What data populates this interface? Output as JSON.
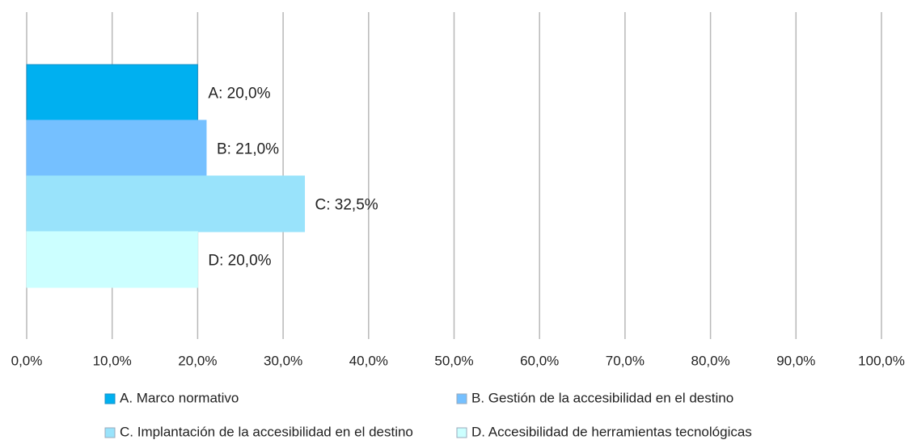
{
  "chart_data": {
    "type": "bar",
    "orientation": "horizontal",
    "series": [
      {
        "name": "A. Marco normativo",
        "color": "#00b0f0",
        "values": [
          20.0
        ],
        "value_labels": [
          "A: 20,0%"
        ]
      },
      {
        "name": "B. Gestión de la accesibilidad en el destino",
        "color": "#75c0ff",
        "values": [
          21.0
        ],
        "value_labels": [
          "B: 21,0%"
        ]
      },
      {
        "name": "C. Implantación de la accesibilidad en el destino",
        "color": "#99e3fb",
        "values": [
          32.5
        ],
        "value_labels": [
          "C: 32,5%"
        ]
      },
      {
        "name": "D. Accesibilidad de herramientas tecnológicas",
        "color": "#ccffff",
        "values": [
          20.0
        ],
        "value_labels": [
          "D: 20,0%"
        ]
      }
    ],
    "xlim": [
      0,
      100
    ],
    "xticks": [
      {
        "value": 0,
        "label": "0,0%"
      },
      {
        "value": 10,
        "label": "10,0%"
      },
      {
        "value": 20,
        "label": "20,0%"
      },
      {
        "value": 30,
        "label": "30,0%"
      },
      {
        "value": 40,
        "label": "40,0%"
      },
      {
        "value": 50,
        "label": "50,0%"
      },
      {
        "value": 60,
        "label": "60,0%"
      },
      {
        "value": 70,
        "label": "70,0%"
      },
      {
        "value": 80,
        "label": "80,0%"
      },
      {
        "value": 90,
        "label": "90,0%"
      },
      {
        "value": 100,
        "label": "100,0%"
      }
    ],
    "grid": true,
    "legend": "bottom"
  }
}
